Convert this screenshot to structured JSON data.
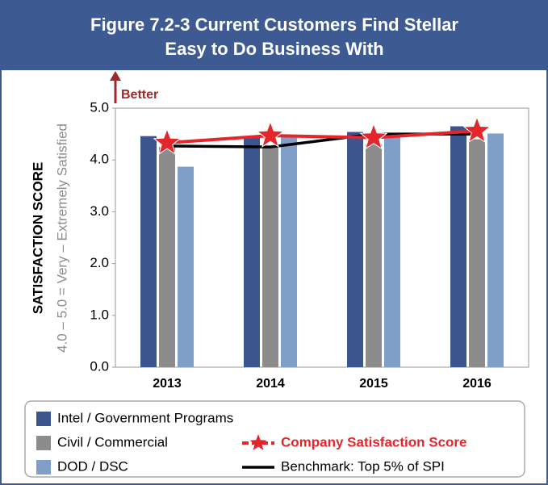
{
  "chart_data": {
    "type": "bar",
    "title": [
      "Figure 7.2-3 Current Customers Find Stellar",
      "Easy to Do Business With"
    ],
    "y_label": "SATISFACTION SCORE",
    "y_sublabel": "4.0 – 5.0 = Very – Extremely Satisfied",
    "annotation": "Better",
    "categories": [
      "2013",
      "2014",
      "2015",
      "2016"
    ],
    "ylim": [
      0,
      5
    ],
    "yticks": [
      {
        "value": 0,
        "label": "0.0"
      },
      {
        "value": 1,
        "label": "1.0"
      },
      {
        "value": 2,
        "label": "2.0"
      },
      {
        "value": 3,
        "label": "3.0"
      },
      {
        "value": 4,
        "label": "4.0"
      },
      {
        "value": 5,
        "label": "5.0"
      }
    ],
    "series": [
      {
        "name": "Intel / Government Programs",
        "type": "bar",
        "color": "#3b5591",
        "values": [
          4.46,
          4.46,
          4.54,
          4.65
        ]
      },
      {
        "name": "Civil / Commercial",
        "type": "bar",
        "color": "#8c8c8c",
        "values": [
          4.25,
          4.25,
          4.3,
          4.4
        ]
      },
      {
        "name": "DOD / DSC",
        "type": "bar",
        "color": "#7f9fc9",
        "values": [
          3.87,
          4.45,
          4.5,
          4.51
        ]
      },
      {
        "name": "Company Satisfaction Score",
        "type": "line",
        "color": "#e3262b",
        "values": [
          4.33,
          4.47,
          4.43,
          4.56
        ]
      },
      {
        "name": "Benchmark: Top 5% of SPI",
        "type": "line",
        "color": "#000000",
        "values": [
          4.27,
          4.25,
          4.5,
          4.5
        ]
      }
    ]
  }
}
